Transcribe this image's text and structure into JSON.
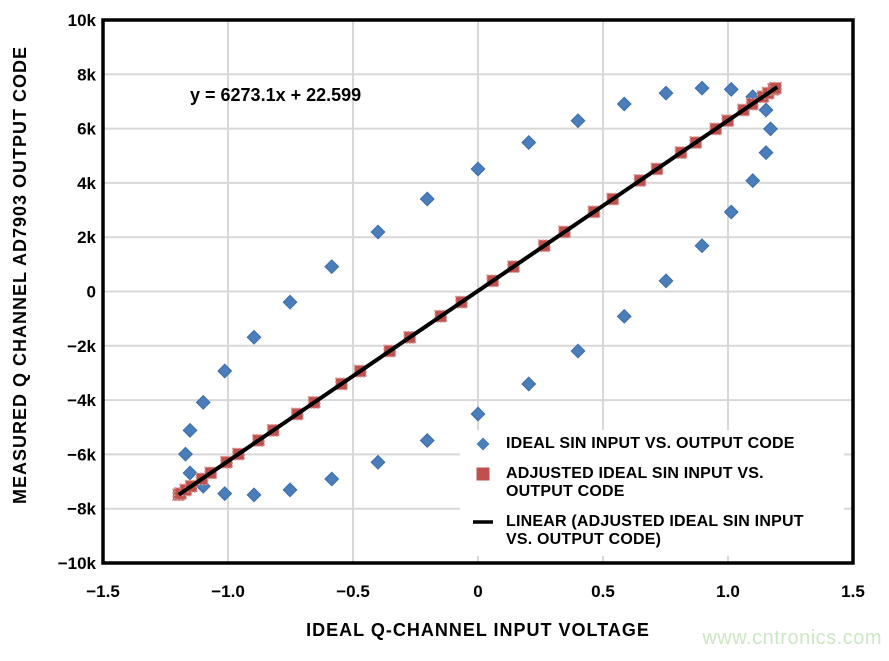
{
  "figure": {
    "equation": "y = 6273.1x + 22.599",
    "x_axis_title": "IDEAL Q-CHANNEL INPUT VOLTAGE",
    "y_axis_title": "MEASURED Q CHANNEL AD7903 OUTPUT CODE",
    "watermark": "www.cntronics.com",
    "watermark_color": "#cbe7c4",
    "background_color": "#ffffff",
    "gridline_color": "#d8d8d8",
    "frame_color": "#000000"
  },
  "legend": [
    {
      "marker": "diamond",
      "color": "#4a7ebb",
      "label": "IDEAL SIN INPUT VS. OUTPUT CODE"
    },
    {
      "marker": "square",
      "color": "#c0504d",
      "label": "ADJUSTED IDEAL SIN INPUT VS.\nOUTPUT CODE"
    },
    {
      "marker": "line",
      "color": "#000000",
      "label": "LINEAR (ADJUSTED IDEAL SIN INPUT\nVS. OUTPUT CODE)"
    }
  ],
  "chart_data": {
    "type": "scatter",
    "title": "",
    "xlabel": "IDEAL Q-CHANNEL INPUT VOLTAGE",
    "ylabel": "MEASURED Q CHANNEL AD7903 OUTPUT CODE",
    "annotation": "y = 6273.1x + 22.599",
    "xlim": [
      -1.5,
      1.5
    ],
    "ylim": [
      -10000,
      10000
    ],
    "grid": true,
    "legend_position": "inside-lower-right",
    "x_ticks": [
      -1.5,
      -1.0,
      -0.5,
      0,
      0.5,
      1.0,
      1.5
    ],
    "x_tick_labels": [
      "−1.5",
      "−1.0",
      "−0.5",
      "0",
      "0.5",
      "1.0",
      "1.5"
    ],
    "y_ticks": [
      -10000,
      -8000,
      -6000,
      -4000,
      -2000,
      0,
      2000,
      4000,
      6000,
      8000,
      10000
    ],
    "y_tick_labels": [
      "−10k",
      "−8k",
      "−6k",
      "−4k",
      "−2k",
      "0",
      "2k",
      "4k",
      "6k",
      "8k",
      "10k"
    ],
    "series": [
      {
        "name": "IDEAL SIN INPUT VS. OUTPUT CODE",
        "type": "scatter",
        "marker": "diamond",
        "color": "#4a7ebb",
        "edge_color": "#3e6ca8",
        "points": [
          [
            0.0,
            4514
          ],
          [
            0.203,
            5486
          ],
          [
            0.4,
            6290
          ],
          [
            0.585,
            6904
          ],
          [
            0.752,
            7308
          ],
          [
            0.896,
            7489
          ],
          [
            1.013,
            7444
          ],
          [
            1.099,
            7172
          ],
          [
            1.152,
            6683
          ],
          [
            1.17,
            5990
          ],
          [
            1.152,
            5115
          ],
          [
            1.099,
            4085
          ],
          [
            1.013,
            2930
          ],
          [
            0.896,
            1687
          ],
          [
            0.752,
            392
          ],
          [
            0.585,
            -914
          ],
          [
            0.4,
            -2193
          ],
          [
            0.203,
            -3405
          ],
          [
            0.0,
            -4514
          ],
          [
            -0.203,
            -5486
          ],
          [
            -0.4,
            -6290
          ],
          [
            -0.585,
            -6904
          ],
          [
            -0.752,
            -7308
          ],
          [
            -0.896,
            -7489
          ],
          [
            -1.013,
            -7444
          ],
          [
            -1.099,
            -7172
          ],
          [
            -1.152,
            -6683
          ],
          [
            -1.17,
            -5990
          ],
          [
            -1.152,
            -5115
          ],
          [
            -1.099,
            -4085
          ],
          [
            -1.013,
            -2930
          ],
          [
            -0.896,
            -1687
          ],
          [
            -0.752,
            -392
          ],
          [
            -0.585,
            914
          ],
          [
            -0.4,
            2193
          ],
          [
            -0.203,
            3405
          ]
        ]
      },
      {
        "name": "ADJUSTED IDEAL SIN INPUT VS. OUTPUT CODE",
        "type": "scatter",
        "marker": "square",
        "color": "#c0504d",
        "edge_color": "#d79492",
        "points": [
          [
            -1.197,
            -7486
          ],
          [
            -1.19,
            -7442
          ],
          [
            -1.169,
            -7311
          ],
          [
            -1.147,
            -7173
          ],
          [
            -1.104,
            -6903
          ],
          [
            -1.069,
            -6683
          ],
          [
            -1.006,
            -6288
          ],
          [
            -0.958,
            -5987
          ],
          [
            -0.878,
            -5485
          ],
          [
            -0.819,
            -5115
          ],
          [
            -0.723,
            -4513
          ],
          [
            -0.655,
            -4086
          ],
          [
            -0.546,
            -3403
          ],
          [
            -0.471,
            -2932
          ],
          [
            -0.353,
            -2192
          ],
          [
            -0.273,
            -1690
          ],
          [
            -0.149,
            -912
          ],
          [
            -0.066,
            -391
          ],
          [
            0.059,
            393
          ],
          [
            0.142,
            913
          ],
          [
            0.265,
            1685
          ],
          [
            0.346,
            2193
          ],
          [
            0.464,
            2933
          ],
          [
            0.539,
            3404
          ],
          [
            0.648,
            4088
          ],
          [
            0.716,
            4514
          ],
          [
            0.812,
            5116
          ],
          [
            0.871,
            5486
          ],
          [
            0.951,
            5988
          ],
          [
            0.999,
            6289
          ],
          [
            1.062,
            6685
          ],
          [
            1.097,
            6904
          ],
          [
            1.14,
            7174
          ],
          [
            1.161,
            7306
          ],
          [
            1.183,
            7444
          ],
          [
            1.19,
            7488
          ]
        ]
      },
      {
        "name": "LINEAR (ADJUSTED IDEAL SIN INPUT VS. OUTPUT CODE)",
        "type": "line",
        "marker": "none",
        "color": "#000000",
        "edge_color": "#000000",
        "points": [
          [
            -1.197,
            -7486
          ],
          [
            1.197,
            7531
          ]
        ]
      }
    ]
  }
}
